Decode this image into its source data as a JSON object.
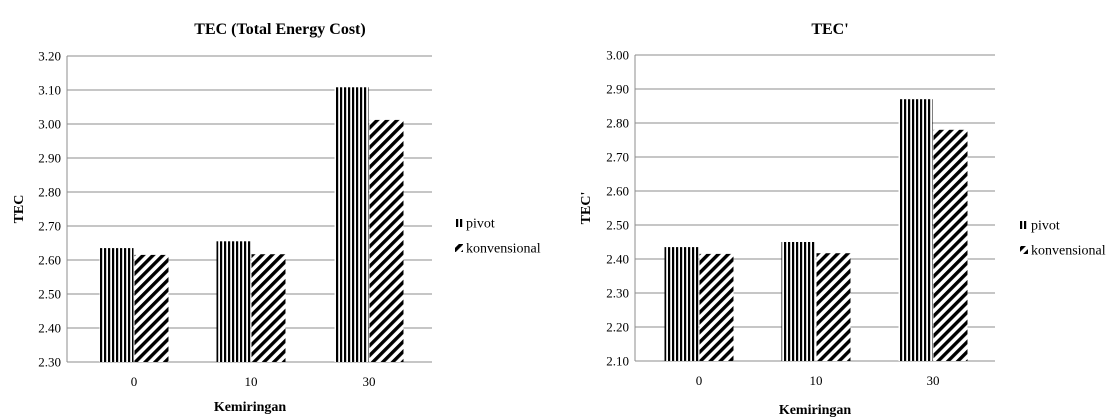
{
  "chart_data": [
    {
      "type": "bar",
      "title": "TEC (Total Energy Cost)",
      "xlabel": "Kemiringan",
      "ylabel": "TEC",
      "categories": [
        "0",
        "10",
        "30"
      ],
      "ylim": [
        2.3,
        3.2
      ],
      "yticks": [
        "2.30",
        "2.40",
        "2.50",
        "2.60",
        "2.70",
        "2.80",
        "2.90",
        "3.00",
        "3.10",
        "3.20"
      ],
      "grid": true,
      "legend_position": "right",
      "series": [
        {
          "name": "pivot",
          "pattern": "vertical-stripes",
          "values": [
            2.635,
            2.655,
            3.108
          ]
        },
        {
          "name": "konvensional",
          "pattern": "diagonal-stripes",
          "values": [
            2.615,
            2.617,
            3.012
          ]
        }
      ]
    },
    {
      "type": "bar",
      "title": "TEC'",
      "xlabel": "Kemiringan",
      "ylabel": "TEC'",
      "categories": [
        "0",
        "10",
        "30"
      ],
      "ylim": [
        2.1,
        3.0
      ],
      "yticks": [
        "2.10",
        "2.20",
        "2.30",
        "2.40",
        "2.50",
        "2.60",
        "2.70",
        "2.80",
        "2.90",
        "3.00"
      ],
      "grid": true,
      "legend_position": "right",
      "series": [
        {
          "name": "pivot",
          "pattern": "vertical-stripes",
          "values": [
            2.435,
            2.45,
            2.87
          ]
        },
        {
          "name": "konvensional",
          "pattern": "diagonal-stripes",
          "values": [
            2.415,
            2.417,
            2.78
          ]
        }
      ]
    }
  ]
}
